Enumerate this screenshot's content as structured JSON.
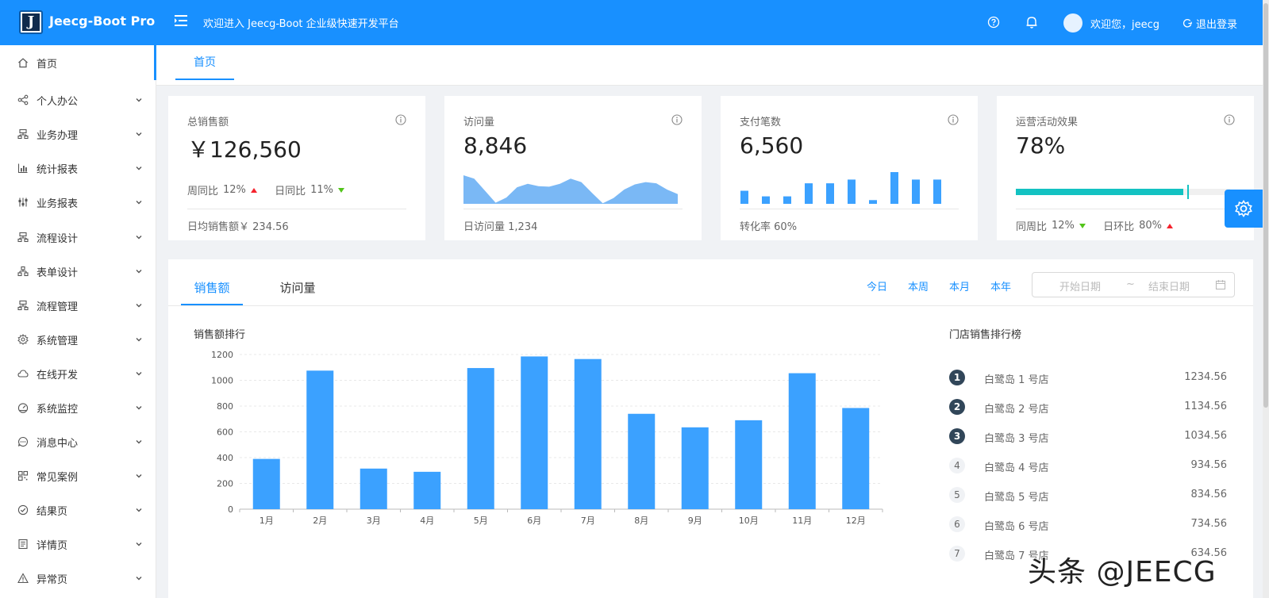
{
  "app": {
    "title": "Jeecg-Boot Pro",
    "logo_letter": "J",
    "welcome": "欢迎进入 Jeecg-Boot 企业级快速开发平台",
    "user_greeting": "欢迎您，jeecg",
    "logout": "退出登录",
    "brand_color": "#1890ff"
  },
  "sidebar": {
    "items": [
      {
        "label": "首页",
        "icon": "home-icon"
      },
      {
        "label": "个人办公",
        "icon": "share-icon"
      },
      {
        "label": "业务办理",
        "icon": "cluster-icon"
      },
      {
        "label": "统计报表",
        "icon": "bar-chart-icon"
      },
      {
        "label": "业务报表",
        "icon": "sliders-icon"
      },
      {
        "label": "流程设计",
        "icon": "cluster-icon"
      },
      {
        "label": "表单设计",
        "icon": "apartment-icon"
      },
      {
        "label": "流程管理",
        "icon": "cluster-icon"
      },
      {
        "label": "系统管理",
        "icon": "gear-icon"
      },
      {
        "label": "在线开发",
        "icon": "cloud-icon"
      },
      {
        "label": "系统监控",
        "icon": "dashboard-icon"
      },
      {
        "label": "消息中心",
        "icon": "message-icon"
      },
      {
        "label": "常见案例",
        "icon": "qrcode-icon"
      },
      {
        "label": "结果页",
        "icon": "check-circle-icon"
      },
      {
        "label": "详情页",
        "icon": "profile-icon"
      },
      {
        "label": "异常页",
        "icon": "warning-icon"
      }
    ]
  },
  "tabs": {
    "home": "首页"
  },
  "cards": {
    "sales": {
      "title": "总销售额",
      "value": "￥126,560",
      "wow_label": "周同比",
      "wow_value": "12%",
      "dod_label": "日同比",
      "dod_value": "11%",
      "footer_label": "日均销售额￥",
      "footer_value": "234.56"
    },
    "visits": {
      "title": "访问量",
      "value": "8,846",
      "footer_label": "日访问量",
      "footer_value": "1,234",
      "area_values": [
        5,
        4.4,
        2.3,
        0.2,
        1.1,
        2.9,
        3.5,
        3.1,
        3.0,
        3.5,
        4.4,
        3.8,
        1.9,
        0.1,
        1.0,
        2.5,
        3.4,
        3.8,
        3.6,
        2.5,
        1.7
      ]
    },
    "payments": {
      "title": "支付笔数",
      "value": "6,560",
      "footer_label": "转化率",
      "footer_value": "60%",
      "bar_values": [
        7,
        4,
        4,
        11,
        11,
        13,
        2,
        17,
        13,
        13
      ]
    },
    "operations": {
      "title": "运营活动效果",
      "value": "78%",
      "progress": 78,
      "target": 80,
      "wow_label": "同周比",
      "wow_value": "12%",
      "dod_label": "日环比",
      "dod_value": "80%",
      "color": "#13c2c2"
    }
  },
  "panel": {
    "tab_sales": "销售额",
    "tab_visits": "访问量",
    "ranges": [
      "今日",
      "本周",
      "本月",
      "本年"
    ],
    "start_placeholder": "开始日期",
    "separator": "~",
    "end_placeholder": "结束日期",
    "chart_title": "销售额排行",
    "rank_title": "门店销售排行榜",
    "rank": [
      {
        "no": "1",
        "name": "白鹭岛 1 号店",
        "value": "1234.56"
      },
      {
        "no": "2",
        "name": "白鹭岛 2 号店",
        "value": "1134.56"
      },
      {
        "no": "3",
        "name": "白鹭岛 3 号店",
        "value": "1034.56"
      },
      {
        "no": "4",
        "name": "白鹭岛 4 号店",
        "value": "934.56"
      },
      {
        "no": "5",
        "name": "白鹭岛 5 号店",
        "value": "834.56"
      },
      {
        "no": "6",
        "name": "白鹭岛 6 号店",
        "value": "734.56"
      },
      {
        "no": "7",
        "name": "白鹭岛 7 号店",
        "value": "634.56"
      }
    ]
  },
  "chart_data": {
    "type": "bar",
    "title": "销售额排行",
    "categories": [
      "1月",
      "2月",
      "3月",
      "4月",
      "5月",
      "6月",
      "7月",
      "8月",
      "9月",
      "10月",
      "11月",
      "12月"
    ],
    "values": [
      390,
      1075,
      315,
      290,
      1095,
      1185,
      1165,
      740,
      635,
      690,
      1055,
      785
    ],
    "ylim": [
      0,
      1200
    ],
    "yticks": [
      "0",
      "200",
      "400",
      "600",
      "800",
      "1000",
      "1200"
    ],
    "grid": true,
    "color": "#3ba1ff"
  },
  "watermark": "头条 @JEECG"
}
